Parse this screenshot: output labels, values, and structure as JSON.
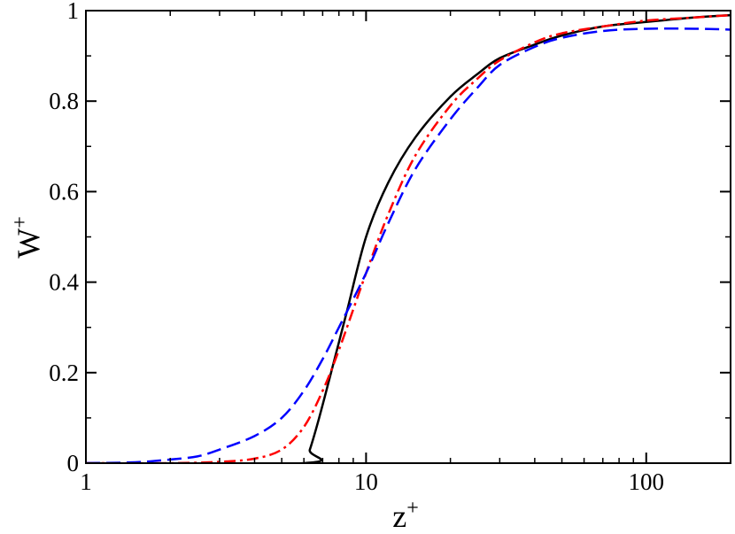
{
  "chart_data": {
    "type": "line",
    "xscale": "log",
    "xlim": [
      1,
      200
    ],
    "ylim": [
      0,
      1
    ],
    "grid": false,
    "xlabel": {
      "base": "z",
      "sup": "+"
    },
    "ylabel": {
      "base": "W",
      "sup": "+"
    },
    "x_ticks": [
      {
        "value": 1,
        "label": "1"
      },
      {
        "value": 10,
        "label": "10"
      },
      {
        "value": 100,
        "label": "100"
      }
    ],
    "y_ticks": [
      {
        "value": 0,
        "label": "0"
      },
      {
        "value": 0.2,
        "label": "0.2"
      },
      {
        "value": 0.4,
        "label": "0.4"
      },
      {
        "value": 0.6,
        "label": "0.6"
      },
      {
        "value": 0.8,
        "label": "0.8"
      },
      {
        "value": 1,
        "label": "1"
      }
    ],
    "series": [
      {
        "color": "#000000",
        "style": "solid",
        "points": [
          [
            1,
            0
          ],
          [
            6,
            0
          ],
          [
            6.3,
            0.03
          ],
          [
            6.8,
            0.1
          ],
          [
            7.5,
            0.2
          ],
          [
            8.5,
            0.33
          ],
          [
            10,
            0.5
          ],
          [
            12,
            0.62
          ],
          [
            15,
            0.72
          ],
          [
            20,
            0.81
          ],
          [
            25,
            0.86
          ],
          [
            30,
            0.895
          ],
          [
            40,
            0.925
          ],
          [
            50,
            0.945
          ],
          [
            70,
            0.965
          ],
          [
            100,
            0.975
          ],
          [
            150,
            0.985
          ],
          [
            200,
            0.99
          ]
        ]
      },
      {
        "color": "#ff0000",
        "style": "dashdot",
        "points": [
          [
            1,
            0
          ],
          [
            2,
            0
          ],
          [
            3,
            0.003
          ],
          [
            4,
            0.01
          ],
          [
            5,
            0.03
          ],
          [
            6,
            0.08
          ],
          [
            7,
            0.16
          ],
          [
            8,
            0.25
          ],
          [
            10,
            0.42
          ],
          [
            12,
            0.55
          ],
          [
            15,
            0.68
          ],
          [
            20,
            0.79
          ],
          [
            25,
            0.85
          ],
          [
            30,
            0.89
          ],
          [
            40,
            0.93
          ],
          [
            50,
            0.95
          ],
          [
            70,
            0.965
          ],
          [
            100,
            0.978
          ],
          [
            150,
            0.985
          ],
          [
            200,
            0.99
          ]
        ]
      },
      {
        "color": "#0000ff",
        "style": "dashed",
        "points": [
          [
            1,
            0
          ],
          [
            1.5,
            0.002
          ],
          [
            2,
            0.008
          ],
          [
            2.5,
            0.015
          ],
          [
            3,
            0.03
          ],
          [
            4,
            0.06
          ],
          [
            5,
            0.1
          ],
          [
            6,
            0.16
          ],
          [
            7,
            0.23
          ],
          [
            8,
            0.3
          ],
          [
            10,
            0.42
          ],
          [
            12,
            0.53
          ],
          [
            15,
            0.65
          ],
          [
            20,
            0.76
          ],
          [
            25,
            0.83
          ],
          [
            30,
            0.88
          ],
          [
            40,
            0.92
          ],
          [
            50,
            0.94
          ],
          [
            70,
            0.955
          ],
          [
            100,
            0.96
          ],
          [
            150,
            0.96
          ],
          [
            200,
            0.958
          ]
        ]
      }
    ]
  }
}
